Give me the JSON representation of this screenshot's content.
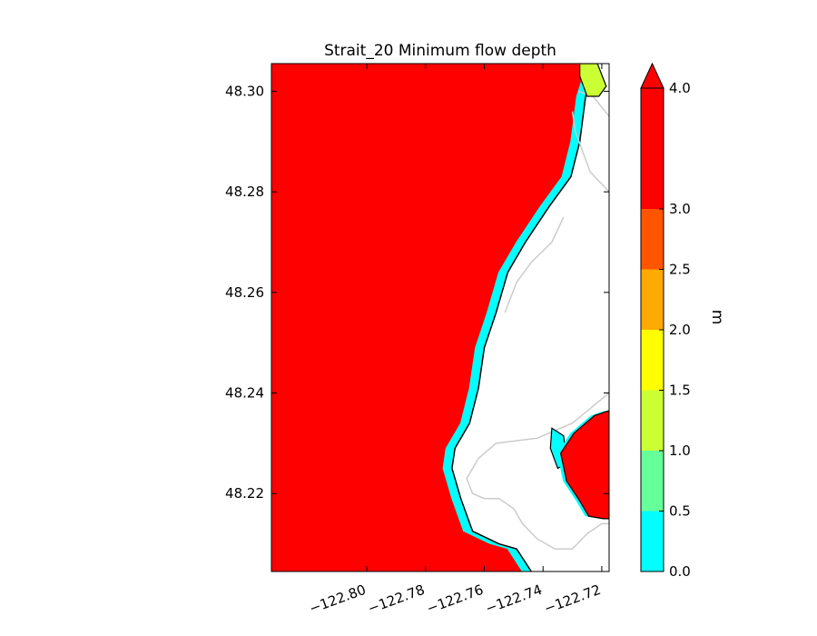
{
  "chart_data": {
    "type": "contour-map",
    "title": "Strait_20 Minimum flow depth",
    "xlabel": "",
    "ylabel": "",
    "xlim": [
      -122.8325,
      -122.7175
    ],
    "ylim": [
      48.2045,
      48.3055
    ],
    "x_ticks": [
      -122.8,
      -122.78,
      -122.76,
      -122.74,
      -122.72
    ],
    "x_tick_labels": [
      "−122.80",
      "−122.78",
      "−122.76",
      "−122.74",
      "−122.72"
    ],
    "y_ticks": [
      48.22,
      48.24,
      48.26,
      48.28,
      48.3
    ],
    "y_tick_labels": [
      "48.22",
      "48.24",
      "48.26",
      "48.28",
      "48.30"
    ],
    "colorbar": {
      "label": "m",
      "extend": "max",
      "levels": [
        0.0,
        0.5,
        1.0,
        1.5,
        2.0,
        2.5,
        3.0,
        4.0
      ],
      "tick_labels": [
        "0.0",
        "0.5",
        "1.0",
        "1.5",
        "2.0",
        "2.5",
        "3.0",
        "4.0"
      ],
      "colors": [
        "#00ffff",
        "#66ff99",
        "#ccff33",
        "#ffff00",
        "#ffaa00",
        "#ff5500",
        "#ff0000"
      ],
      "over_color": "#ff0000"
    },
    "coastline": [
      [
        -122.722,
        48.3055
      ],
      [
        -122.7255,
        48.299
      ],
      [
        -122.7275,
        48.29
      ],
      [
        -122.7305,
        48.283
      ],
      [
        -122.738,
        48.277
      ],
      [
        -122.746,
        48.27
      ],
      [
        -122.752,
        48.264
      ],
      [
        -122.756,
        48.256
      ],
      [
        -122.76,
        48.249
      ],
      [
        -122.762,
        48.241
      ],
      [
        -122.765,
        48.234
      ],
      [
        -122.77,
        48.229
      ],
      [
        -122.771,
        48.225
      ],
      [
        -122.768,
        48.219
      ],
      [
        -122.764,
        48.2125
      ],
      [
        -122.755,
        48.21
      ],
      [
        -122.749,
        48.209
      ],
      [
        -122.744,
        48.2045
      ]
    ],
    "shallow_band_width_m": 0.0032,
    "north_island": [
      [
        -122.7275,
        48.3055
      ],
      [
        -122.7215,
        48.3055
      ],
      [
        -122.7185,
        48.301
      ],
      [
        -122.721,
        48.299
      ],
      [
        -122.725,
        48.299
      ],
      [
        -122.7275,
        48.303
      ]
    ],
    "south_peninsula": [
      [
        -122.7175,
        48.2365
      ],
      [
        -122.7225,
        48.2355
      ],
      [
        -122.7295,
        48.232
      ],
      [
        -122.734,
        48.228
      ],
      [
        -122.732,
        48.2225
      ],
      [
        -122.7275,
        48.2185
      ],
      [
        -122.7245,
        48.2155
      ],
      [
        -122.7195,
        48.215
      ],
      [
        -122.7175,
        48.215
      ]
    ],
    "inner_lagoon": [
      [
        -122.737,
        48.233
      ],
      [
        -122.733,
        48.2315
      ],
      [
        -122.732,
        48.226
      ],
      [
        -122.735,
        48.225
      ],
      [
        -122.7375,
        48.229
      ]
    ],
    "land_contours": [
      [
        [
          -122.7175,
          48.28
        ],
        [
          -122.724,
          48.284
        ],
        [
          -122.729,
          48.292
        ],
        [
          -122.73,
          48.296
        ]
      ],
      [
        [
          -122.7175,
          48.295
        ],
        [
          -122.723,
          48.299
        ],
        [
          -122.728,
          48.3
        ]
      ],
      [
        [
          -122.7175,
          48.24
        ],
        [
          -122.73,
          48.234
        ],
        [
          -122.742,
          48.231
        ],
        [
          -122.756,
          48.23
        ],
        [
          -122.762,
          48.227
        ],
        [
          -122.766,
          48.223
        ],
        [
          -122.764,
          48.22
        ],
        [
          -122.76,
          48.219
        ],
        [
          -122.755,
          48.219
        ],
        [
          -122.75,
          48.217
        ],
        [
          -122.747,
          48.214
        ],
        [
          -122.742,
          48.211
        ],
        [
          -122.736,
          48.209
        ],
        [
          -122.73,
          48.209
        ],
        [
          -122.725,
          48.212
        ],
        [
          -122.72,
          48.214
        ],
        [
          -122.7175,
          48.214
        ]
      ],
      [
        [
          -122.753,
          48.256
        ],
        [
          -122.749,
          48.262
        ],
        [
          -122.744,
          48.266
        ],
        [
          -122.737,
          48.27
        ],
        [
          -122.733,
          48.275
        ]
      ]
    ]
  }
}
